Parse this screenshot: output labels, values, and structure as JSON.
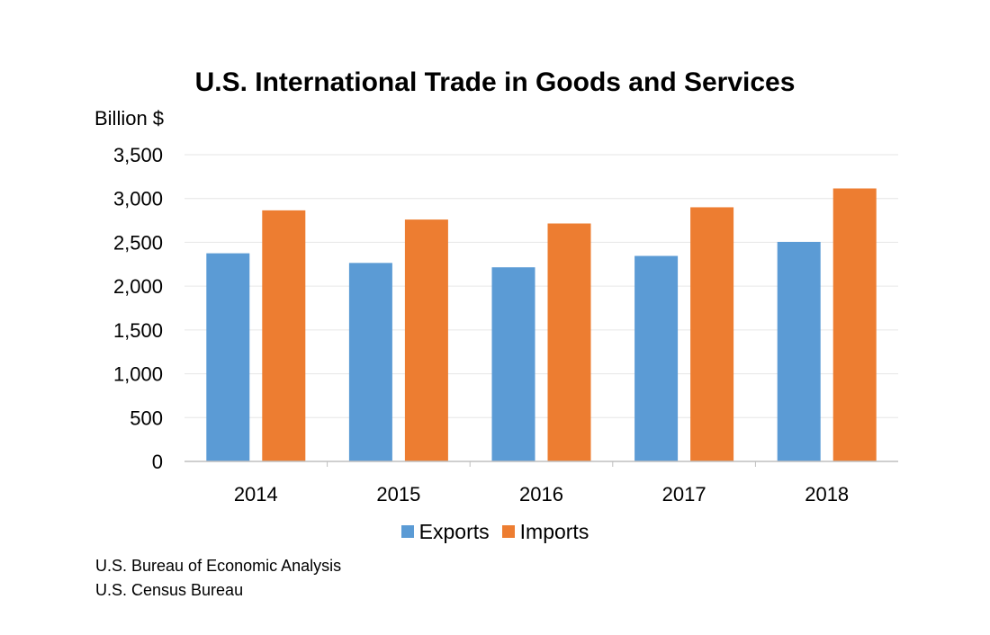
{
  "chart_data": {
    "type": "bar",
    "title": "U.S. International Trade in Goods and Services",
    "ylabel": "Billion $",
    "xlabel": "",
    "categories": [
      "2014",
      "2015",
      "2016",
      "2017",
      "2018"
    ],
    "series": [
      {
        "name": "Exports",
        "color": "#5B9BD5",
        "values": [
          2375,
          2265,
          2215,
          2345,
          2505
        ]
      },
      {
        "name": "Imports",
        "color": "#ED7D31",
        "values": [
          2865,
          2760,
          2715,
          2900,
          3115
        ]
      }
    ],
    "ylim": [
      0,
      3500
    ],
    "yticks": [
      0,
      500,
      1000,
      1500,
      2000,
      2500,
      3000,
      3500
    ],
    "ytick_labels": [
      "0",
      "500",
      "1,000",
      "1,500",
      "2,000",
      "2,500",
      "3,000",
      "3,500"
    ],
    "grid": true,
    "legend_position": "bottom"
  },
  "sources": [
    "U.S. Bureau of Economic Analysis",
    "U.S. Census Bureau"
  ]
}
